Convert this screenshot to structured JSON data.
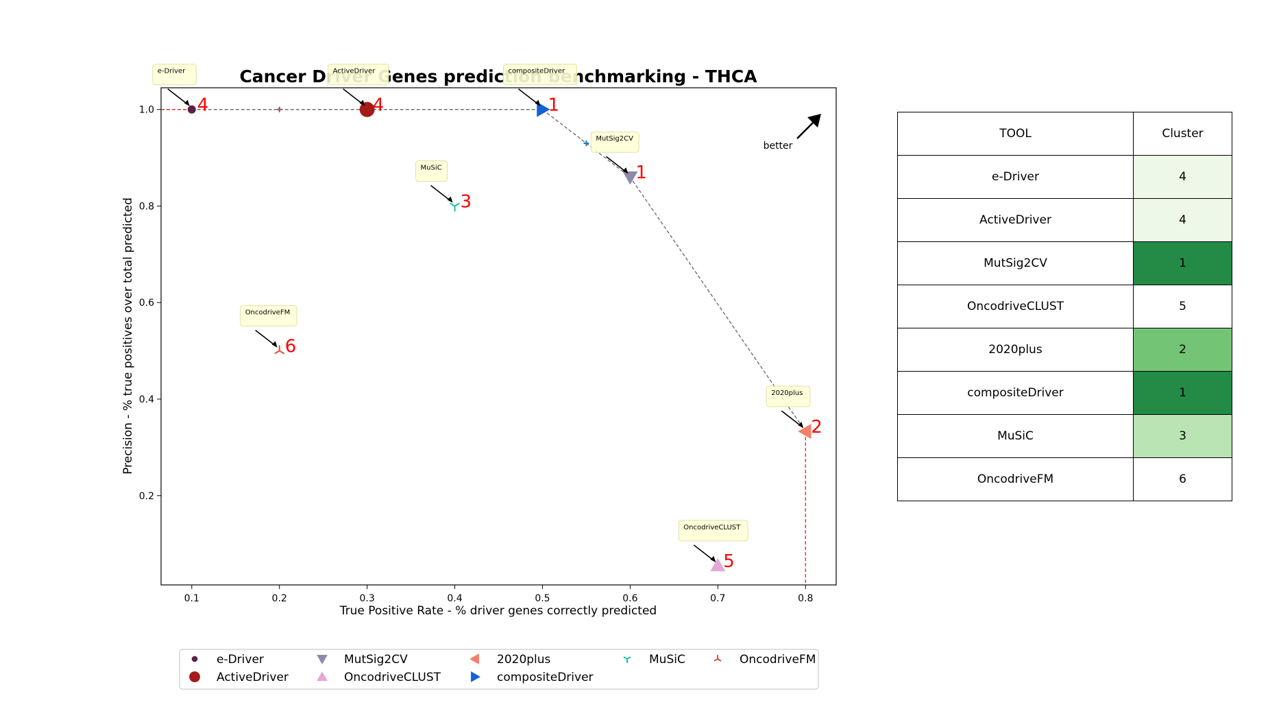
{
  "chart_data": {
    "type": "scatter",
    "title": "Cancer Driver Genes prediction benchmarking - THCA",
    "xlabel": "True Positive Rate - % driver genes correctly predicted",
    "ylabel": "Precision - % true positives over total predicted",
    "xlim": [
      0.065,
      0.835
    ],
    "ylim": [
      0.015,
      1.045
    ],
    "x_ticks": [
      0.1,
      0.2,
      0.3,
      0.4,
      0.5,
      0.6,
      0.7,
      0.8
    ],
    "y_ticks": [
      0.2,
      0.4,
      0.6,
      0.8,
      1.0
    ],
    "grid": false,
    "legend_position": "bottom",
    "better_label": "better",
    "series": [
      {
        "name": "e-Driver",
        "x": 0.1,
        "y": 1.0,
        "cluster": 4,
        "marker": "dot",
        "color": "#5b2245"
      },
      {
        "name": "ActiveDriver",
        "x": 0.3,
        "y": 1.0,
        "cluster": 4,
        "marker": "circle",
        "color": "#a51b1b"
      },
      {
        "name": "MutSig2CV",
        "x": 0.6,
        "y": 0.86,
        "cluster": 1,
        "marker": "triangle-down",
        "color": "#8e8aa8"
      },
      {
        "name": "OncodriveCLUST",
        "x": 0.7,
        "y": 0.055,
        "cluster": 5,
        "marker": "triangle-up",
        "color": "#e3a8d4"
      },
      {
        "name": "2020plus",
        "x": 0.8,
        "y": 0.333,
        "cluster": 2,
        "marker": "triangle-left",
        "color": "#f47f6a"
      },
      {
        "name": "compositeDriver",
        "x": 0.5,
        "y": 1.0,
        "cluster": 1,
        "marker": "triangle-right",
        "color": "#1560d8"
      },
      {
        "name": "MuSiC",
        "x": 0.4,
        "y": 0.8,
        "cluster": 3,
        "marker": "tri-down",
        "color": "#1bbfa1"
      },
      {
        "name": "OncodriveFM",
        "x": 0.2,
        "y": 0.5,
        "cluster": 6,
        "marker": "tri-up",
        "color": "#e0502f"
      }
    ],
    "pareto_frontier": [
      [
        0.1,
        1.0
      ],
      [
        0.2,
        1.0
      ],
      [
        0.3,
        1.0
      ],
      [
        0.5,
        1.0
      ],
      [
        0.55,
        0.93
      ],
      [
        0.6,
        0.86
      ],
      [
        0.8,
        0.333
      ]
    ],
    "frontier_colors": {
      "line": "#666666",
      "reference": "#e02020",
      "cluster_label": "#ff0000"
    }
  },
  "table": {
    "headers": [
      "TOOL",
      "Cluster"
    ],
    "rows": [
      {
        "tool": "e-Driver",
        "cluster": "4",
        "color": "#edf8e9"
      },
      {
        "tool": "ActiveDriver",
        "cluster": "4",
        "color": "#edf8e9"
      },
      {
        "tool": "MutSig2CV",
        "cluster": "1",
        "color": "#238b45"
      },
      {
        "tool": "OncodriveCLUST",
        "cluster": "5",
        "color": "#ffffff"
      },
      {
        "tool": "2020plus",
        "cluster": "2",
        "color": "#74c476"
      },
      {
        "tool": "compositeDriver",
        "cluster": "1",
        "color": "#238b45"
      },
      {
        "tool": "MuSiC",
        "cluster": "3",
        "color": "#bae4b3"
      },
      {
        "tool": "OncodriveFM",
        "cluster": "6",
        "color": "#ffffff"
      }
    ]
  }
}
